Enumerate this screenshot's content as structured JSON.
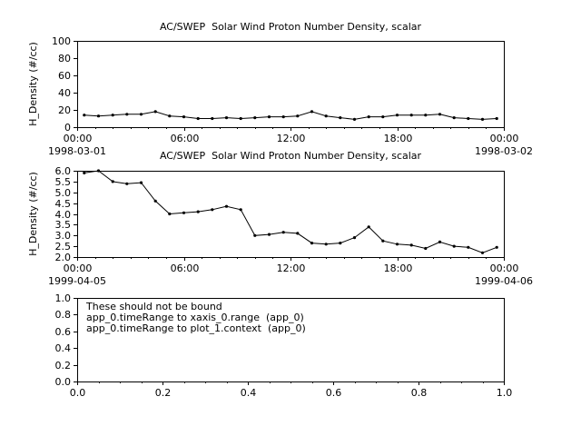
{
  "window": {
    "background": "#ffffff",
    "foreground": "#000000"
  },
  "chart_data": [
    {
      "id": "plot_0",
      "type": "line",
      "title": "AC/SWEP  Solar Wind Proton Number Density, scalar",
      "ylabel": "H_Density (#/cc)",
      "xlabel": "",
      "xlim": [
        0,
        24
      ],
      "ylim": [
        0,
        100
      ],
      "yticks": {
        "values": [
          0,
          20,
          40,
          60,
          80,
          100
        ],
        "labels": [
          "0",
          "20",
          "40",
          "60",
          "80",
          "100"
        ]
      },
      "xticks": {
        "values": [
          0,
          6,
          12,
          18,
          24
        ],
        "labels": [
          "00:00",
          "06:00",
          "12:00",
          "18:00",
          "00:00"
        ]
      },
      "x_minor_step": 1,
      "x_date_left": "1998-03-01",
      "x_date_right": "1998-03-02",
      "line_color": "#000000",
      "marker": "dot",
      "x": [
        0.4,
        1.2,
        2,
        2.8,
        3.6,
        4.4,
        5.2,
        6,
        6.8,
        7.6,
        8.4,
        9.2,
        10,
        10.8,
        11.6,
        12.4,
        13.2,
        14,
        14.8,
        15.6,
        16.4,
        17.2,
        18,
        18.8,
        19.6,
        20.4,
        21.2,
        22,
        22.8,
        23.6
      ],
      "y": [
        14,
        13,
        14,
        15,
        15,
        18,
        13,
        12,
        10,
        10,
        11,
        10,
        11,
        12,
        12,
        13,
        18,
        13,
        11,
        9,
        12,
        12,
        14,
        14,
        14,
        15,
        11,
        10,
        9,
        10
      ]
    },
    {
      "id": "plot_1",
      "type": "line",
      "title": "AC/SWEP  Solar Wind Proton Number Density, scalar",
      "ylabel": "H_Density (#/cc)",
      "xlabel": "",
      "xlim": [
        0,
        24
      ],
      "ylim": [
        2.0,
        6.0
      ],
      "yticks": {
        "values": [
          2.0,
          2.5,
          3.0,
          3.5,
          4.0,
          4.5,
          5.0,
          5.5,
          6.0
        ],
        "labels": [
          "2.0",
          "2.5",
          "3.0",
          "3.5",
          "4.0",
          "4.5",
          "5.0",
          "5.5",
          "6.0"
        ]
      },
      "xticks": {
        "values": [
          0,
          6,
          12,
          18,
          24
        ],
        "labels": [
          "00:00",
          "06:00",
          "12:00",
          "18:00",
          "00:00"
        ]
      },
      "x_minor_step": 1,
      "x_date_left": "1999-04-05",
      "x_date_right": "1999-04-06",
      "line_color": "#000000",
      "marker": "dot",
      "x": [
        0.4,
        1.2,
        2,
        2.8,
        3.6,
        4.4,
        5.2,
        6,
        6.8,
        7.6,
        8.4,
        9.2,
        10,
        10.8,
        11.6,
        12.4,
        13.2,
        14,
        14.8,
        15.6,
        16.4,
        17.2,
        18,
        18.8,
        19.6,
        20.4,
        21.2,
        22,
        22.8,
        23.6
      ],
      "y": [
        5.9,
        6.0,
        5.5,
        5.4,
        5.45,
        4.6,
        4.0,
        4.05,
        4.1,
        4.2,
        4.35,
        4.2,
        3.0,
        3.05,
        3.15,
        3.1,
        2.65,
        2.6,
        2.65,
        2.9,
        3.4,
        2.75,
        2.6,
        2.55,
        2.4,
        2.7,
        2.5,
        2.45,
        2.2,
        2.45
      ]
    },
    {
      "id": "plot_2",
      "type": "empty",
      "title": "",
      "ylabel": "",
      "xlabel": "",
      "xlim": [
        0,
        1
      ],
      "ylim": [
        0,
        1
      ],
      "yticks": {
        "values": [
          0,
          0.2,
          0.4,
          0.6,
          0.8,
          1
        ],
        "labels": [
          "0.0",
          "0.2",
          "0.4",
          "0.6",
          "0.8",
          "1.0"
        ]
      },
      "xticks": {
        "values": [
          0,
          0.2,
          0.4,
          0.6,
          0.8,
          1
        ],
        "labels": [
          "0.0",
          "0.2",
          "0.4",
          "0.6",
          "0.8",
          "1.0"
        ]
      },
      "x_minor_step": 0.05,
      "annotations": [
        "These should not be bound",
        "app_0.timeRange to xaxis_0.range  (app_0)",
        "app_0.timeRange to plot_1.context  (app_0)"
      ]
    }
  ]
}
